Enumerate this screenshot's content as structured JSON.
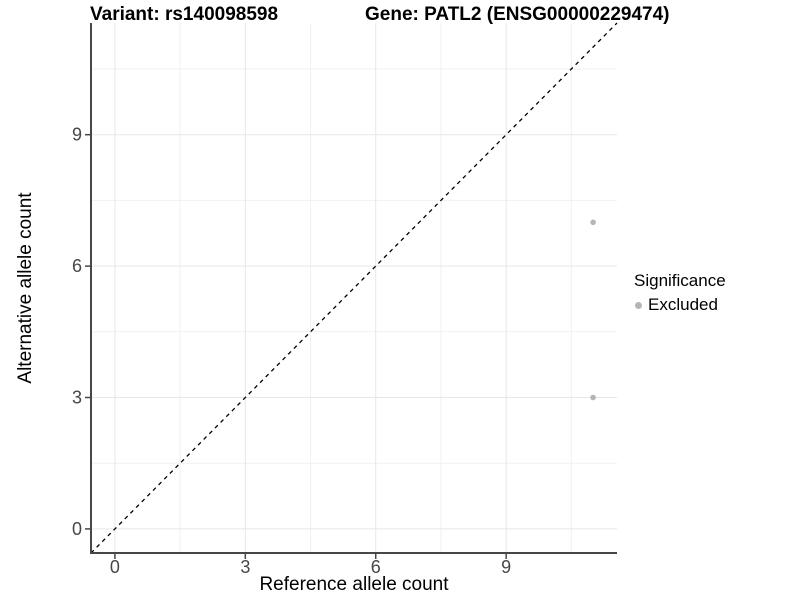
{
  "chart_data": {
    "type": "scatter",
    "titles": {
      "left": "Variant: rs140098598",
      "right": "Gene: PATL2 (ENSG00000229474)"
    },
    "xlabel": "Reference allele count",
    "ylabel": "Alternative allele count",
    "xlim": [
      -0.55,
      11.55
    ],
    "ylim": [
      -0.55,
      11.55
    ],
    "xticks": [
      0,
      3,
      6,
      9
    ],
    "yticks": [
      0,
      3,
      6,
      9
    ],
    "x_minor_ticks": [
      1.5,
      4.5,
      7.5,
      10.5
    ],
    "y_minor_ticks": [
      1.5,
      4.5,
      7.5,
      10.5
    ],
    "grid": true,
    "series": [
      {
        "name": "Excluded",
        "points": [
          {
            "x": 11,
            "y": 7
          },
          {
            "x": 11,
            "y": 3
          }
        ],
        "color": "#b5b5b5",
        "marker_radius": 2.8
      }
    ],
    "reference_line": {
      "type": "identity y=x",
      "style": "dashed",
      "color": "#000000"
    },
    "legend": {
      "position": "right",
      "title": "Significance",
      "items": [
        {
          "label": "Excluded",
          "color": "#b5b5b5"
        }
      ]
    }
  },
  "colors": {
    "background": "#ffffff",
    "grid_major": "#e7e7e7",
    "grid_minor": "#f1f1f1",
    "axis_line": "#474747",
    "tick_mark": "#474747",
    "tick_label": "#474747",
    "text": "#000000"
  }
}
